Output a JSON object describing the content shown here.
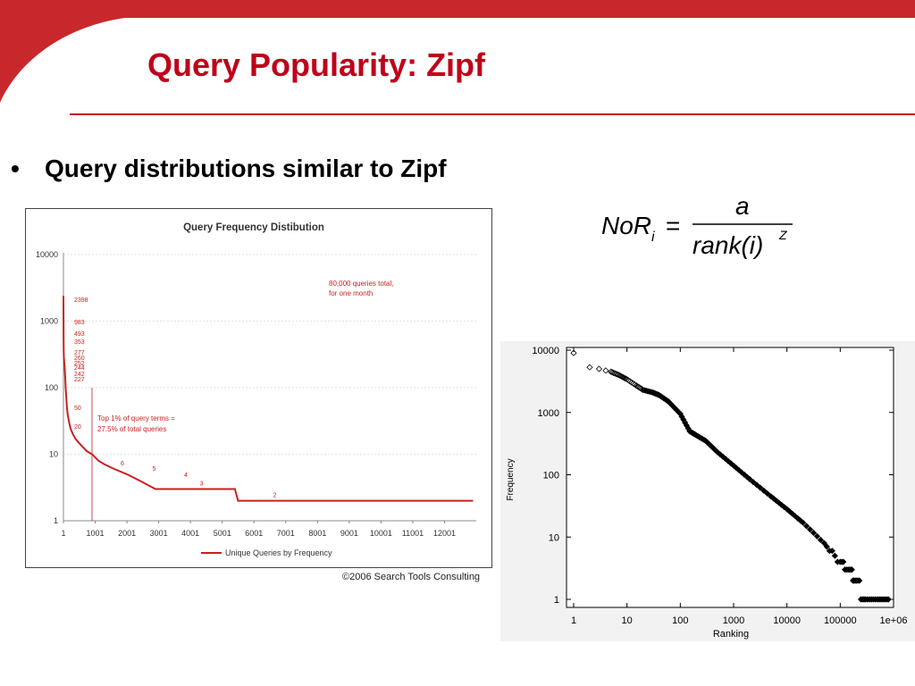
{
  "slide": {
    "title": "Query Popularity: Zipf",
    "bullet": "•",
    "bullet_text": "Query distributions similar to Zipf",
    "accent_color": "#c0001a"
  },
  "formula": {
    "lhs": "NoR",
    "lhs_subscript": "i",
    "equals": "=",
    "numerator": "a",
    "denominator": "rank(i)",
    "exponent": "Z"
  },
  "chart_data": [
    {
      "type": "line",
      "title": "Query Frequency Distibution",
      "xlabel": "",
      "ylabel": "",
      "y_scale": "log",
      "ylim": [
        1,
        10000
      ],
      "xlim": [
        1,
        13000
      ],
      "x_tick_labels": [
        "1",
        "1001",
        "2001",
        "3001",
        "4001",
        "5001",
        "6001",
        "7001",
        "8001",
        "9001",
        "10001",
        "11001",
        "12001"
      ],
      "y_tick_labels": [
        "10000",
        "1000",
        "100",
        "10",
        "1"
      ],
      "series": [
        {
          "name": "Unique Queries by Frequency",
          "color": "#cc1f1f",
          "x": [
            1,
            3,
            6,
            10,
            15,
            20,
            30,
            40,
            55,
            70,
            90,
            110,
            140,
            180,
            230,
            300,
            380,
            480,
            600,
            750,
            900,
            1000,
            1100,
            1300,
            1600,
            2000,
            2400,
            2900,
            3500,
            4200,
            5000,
            5400,
            5500,
            6500,
            8000,
            10000,
            12000,
            12900
          ],
          "y": [
            2398,
            983,
            493,
            353,
            277,
            260,
            227,
            200,
            150,
            100,
            70,
            50,
            38,
            30,
            24,
            20,
            17,
            15,
            13,
            11,
            10,
            9,
            8,
            7,
            6,
            5,
            4,
            3,
            3,
            3,
            3,
            3,
            2,
            2,
            2,
            2,
            2,
            2
          ]
        }
      ],
      "data_labels": [
        "2398",
        "983",
        "493",
        "353",
        "277",
        "260",
        "252",
        "244",
        "242",
        "227",
        "50",
        "20",
        "6",
        "5",
        "4",
        "3",
        "2"
      ],
      "annotations": [
        "80,000 queries total,",
        "for one month",
        "Top 1% of query terms =",
        "27.5% of total queries"
      ],
      "marker_line_x": 900,
      "legend": "bottom-center",
      "credit": "©2006 Search Tools Consulting",
      "grid": true
    },
    {
      "type": "scatter",
      "xlabel": "Ranking",
      "ylabel": "Frequency",
      "x_scale": "log",
      "y_scale": "log",
      "xlim": [
        1,
        1000000
      ],
      "ylim": [
        1,
        10000
      ],
      "x_tick_labels": [
        "1",
        "10",
        "100",
        "1000",
        "10000",
        "100000",
        "1e+06"
      ],
      "y_tick_labels": [
        "10000",
        "1000",
        "100",
        "10",
        "1"
      ],
      "grid": false,
      "marker": "diamond",
      "color": "#000000",
      "x": [
        1,
        2,
        3,
        4,
        5,
        7,
        10,
        15,
        20,
        30,
        40,
        60,
        100,
        150,
        200,
        300,
        500,
        1000,
        2000,
        5000,
        10000,
        20000,
        50000,
        100000,
        150000,
        200000,
        300000,
        500000,
        800000
      ],
      "y": [
        9000,
        5300,
        5000,
        4700,
        4500,
        4000,
        3400,
        2700,
        2300,
        2100,
        1900,
        1500,
        950,
        500,
        430,
        350,
        230,
        140,
        85,
        45,
        28,
        17,
        8,
        4,
        3,
        2,
        1,
        1,
        1
      ]
    }
  ]
}
